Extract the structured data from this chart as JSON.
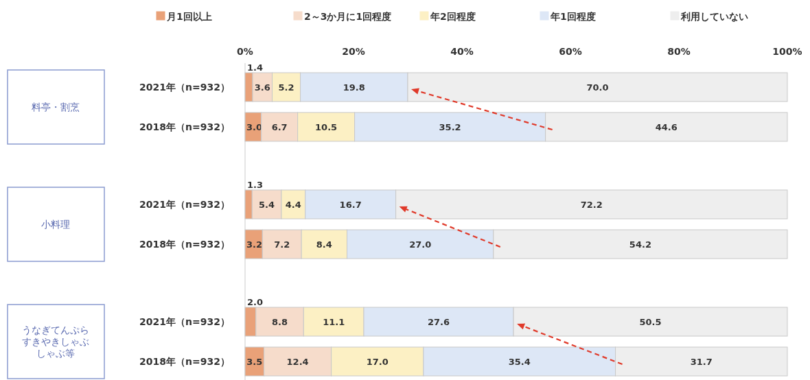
{
  "chart_data": {
    "type": "bar",
    "orientation": "horizontal",
    "stacked": true,
    "legend": "top",
    "categories": [
      "2021年（n=932）",
      "2018年（n=932）",
      "2021年（n=932）",
      "2018年（n=932）",
      "2021年（n=932）",
      "2018年（n=932）"
    ],
    "annotations": [
      "料亭・割烹",
      "小料理",
      "うなぎてんぷらすきやきしゃぶしゃぶ等"
    ],
    "xlim": [
      0,
      100
    ],
    "xticks": [
      {
        "value": 0,
        "label": "0%"
      },
      {
        "value": 20,
        "label": "20%"
      },
      {
        "value": 40,
        "label": "40%"
      },
      {
        "value": 60,
        "label": "60%"
      },
      {
        "value": 80,
        "label": "80%"
      },
      {
        "value": 100,
        "label": "100%"
      }
    ],
    "series": [
      {
        "name": "月1回以上",
        "color": "#e9a178",
        "values": [
          1.4,
          3.0,
          1.3,
          3.2,
          2.0,
          3.5
        ],
        "value_labels": [
          "1.4",
          "3.0",
          "1.3",
          "3.2",
          "2.0",
          "3.5"
        ]
      },
      {
        "name": "2～3か月に1回程度",
        "color": "#f6dccb",
        "values": [
          3.6,
          6.7,
          5.4,
          7.2,
          8.8,
          12.4
        ],
        "value_labels": [
          "3.6",
          "6.7",
          "5.4",
          "7.2",
          "8.8",
          "12.4"
        ]
      },
      {
        "name": "年2回程度",
        "color": "#fcf0c4",
        "values": [
          5.2,
          10.5,
          4.4,
          8.4,
          11.1,
          17.0
        ],
        "value_labels": [
          "5.2",
          "10.5",
          "4.4",
          "8.4",
          "11.1",
          "17.0"
        ]
      },
      {
        "name": "年1回程度",
        "color": "#dde7f6",
        "values": [
          19.8,
          35.2,
          16.7,
          27.0,
          27.6,
          35.4
        ],
        "value_labels": [
          "19.8",
          "35.2",
          "16.7",
          "27.0",
          "27.6",
          "35.4"
        ]
      },
      {
        "name": "利用していない",
        "color": "#eeeeee",
        "values": [
          70.0,
          44.6,
          72.2,
          54.2,
          50.5,
          31.7
        ],
        "value_labels": [
          "70.0",
          "44.6",
          "72.2",
          "54.2",
          "50.5",
          "31.7"
        ]
      }
    ]
  }
}
